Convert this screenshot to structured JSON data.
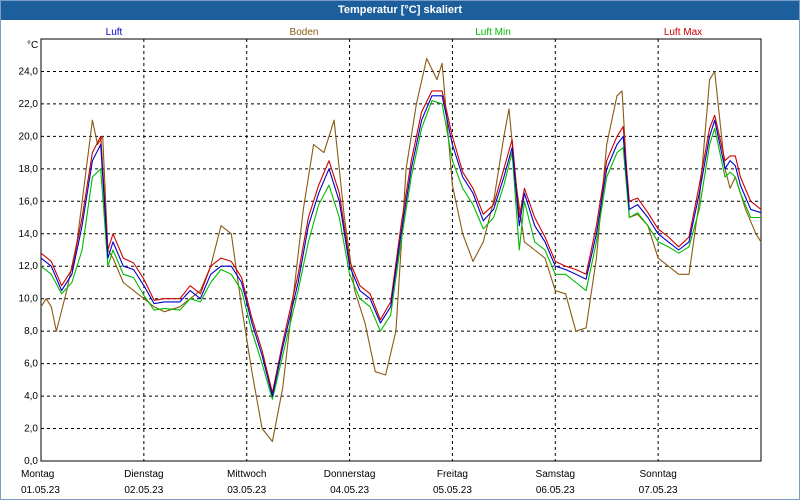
{
  "window": {
    "title": "Temperatur [°C] skaliert"
  },
  "chart_data": {
    "type": "line",
    "title": "Temperatur [°C] skaliert",
    "ylabel": "°C",
    "ylim": [
      0,
      26
    ],
    "yticks": [
      0,
      2,
      4,
      6,
      8,
      10,
      12,
      14,
      16,
      18,
      20,
      22,
      24
    ],
    "ytick_labels": [
      "0,0",
      "2,0",
      "4,0",
      "6,0",
      "8,0",
      "10,0",
      "12,0",
      "14,0",
      "16,0",
      "18,0",
      "20,0",
      "22,0",
      "24,0"
    ],
    "xlim": [
      0,
      7
    ],
    "days": [
      {
        "name": "Montag",
        "date": "01.05.23"
      },
      {
        "name": "Dienstag",
        "date": "02.05.23"
      },
      {
        "name": "Mittwoch",
        "date": "03.05.23"
      },
      {
        "name": "Donnerstag",
        "date": "04.05.23"
      },
      {
        "name": "Freitag",
        "date": "05.05.23"
      },
      {
        "name": "Samstag",
        "date": "06.05.23"
      },
      {
        "name": "Sonntag",
        "date": "07.05.23"
      }
    ],
    "grid": true,
    "series": [
      {
        "name": "Luft",
        "color": "#0000cc",
        "points": [
          [
            0,
            12.5
          ],
          [
            0.1,
            12.0
          ],
          [
            0.2,
            10.5
          ],
          [
            0.3,
            11.5
          ],
          [
            0.4,
            14.5
          ],
          [
            0.5,
            18.5
          ],
          [
            0.58,
            19.5
          ],
          [
            0.65,
            12.5
          ],
          [
            0.7,
            13.5
          ],
          [
            0.8,
            12.0
          ],
          [
            0.9,
            11.8
          ],
          [
            1.0,
            10.8
          ],
          [
            1.1,
            9.7
          ],
          [
            1.2,
            9.8
          ],
          [
            1.35,
            9.8
          ],
          [
            1.45,
            10.5
          ],
          [
            1.55,
            10.0
          ],
          [
            1.65,
            11.5
          ],
          [
            1.75,
            12.0
          ],
          [
            1.85,
            12.0
          ],
          [
            1.95,
            11.0
          ],
          [
            2.05,
            8.5
          ],
          [
            2.15,
            6.5
          ],
          [
            2.25,
            4.0
          ],
          [
            2.35,
            7.0
          ],
          [
            2.5,
            11.0
          ],
          [
            2.6,
            14.5
          ],
          [
            2.7,
            16.5
          ],
          [
            2.8,
            18.0
          ],
          [
            2.9,
            16.0
          ],
          [
            3.0,
            12.0
          ],
          [
            3.1,
            10.5
          ],
          [
            3.2,
            10.0
          ],
          [
            3.3,
            8.5
          ],
          [
            3.4,
            9.5
          ],
          [
            3.5,
            14.0
          ],
          [
            3.6,
            18.0
          ],
          [
            3.7,
            21.0
          ],
          [
            3.8,
            22.5
          ],
          [
            3.9,
            22.5
          ],
          [
            4.0,
            19.5
          ],
          [
            4.1,
            17.5
          ],
          [
            4.2,
            16.5
          ],
          [
            4.3,
            14.8
          ],
          [
            4.4,
            15.5
          ],
          [
            4.5,
            17.5
          ],
          [
            4.58,
            19.3
          ],
          [
            4.65,
            14.5
          ],
          [
            4.7,
            16.5
          ],
          [
            4.8,
            14.5
          ],
          [
            4.9,
            13.5
          ],
          [
            5.0,
            12.0
          ],
          [
            5.1,
            11.8
          ],
          [
            5.2,
            11.5
          ],
          [
            5.3,
            11.2
          ],
          [
            5.4,
            14.0
          ],
          [
            5.5,
            18.0
          ],
          [
            5.6,
            19.5
          ],
          [
            5.66,
            20.0
          ],
          [
            5.72,
            15.5
          ],
          [
            5.8,
            15.8
          ],
          [
            5.9,
            15.0
          ],
          [
            6.0,
            14.0
          ],
          [
            6.1,
            13.5
          ],
          [
            6.2,
            13.0
          ],
          [
            6.3,
            13.5
          ],
          [
            6.4,
            16.5
          ],
          [
            6.5,
            20.0
          ],
          [
            6.55,
            21.0
          ],
          [
            6.65,
            18.0
          ],
          [
            6.7,
            18.5
          ],
          [
            6.75,
            18.2
          ],
          [
            6.8,
            17.0
          ],
          [
            6.9,
            15.5
          ],
          [
            7.0,
            15.3
          ]
        ]
      },
      {
        "name": "Boden",
        "color": "#8b5a12",
        "points": [
          [
            0,
            9.5
          ],
          [
            0.05,
            10.0
          ],
          [
            0.1,
            9.5
          ],
          [
            0.15,
            8.0
          ],
          [
            0.25,
            10.5
          ],
          [
            0.35,
            13.5
          ],
          [
            0.45,
            18.5
          ],
          [
            0.5,
            21.0
          ],
          [
            0.55,
            19.5
          ],
          [
            0.6,
            20.0
          ],
          [
            0.65,
            13.0
          ],
          [
            0.7,
            12.5
          ],
          [
            0.8,
            11.0
          ],
          [
            0.9,
            10.5
          ],
          [
            1.0,
            10.0
          ],
          [
            1.1,
            9.5
          ],
          [
            1.2,
            9.2
          ],
          [
            1.35,
            9.5
          ],
          [
            1.45,
            10.0
          ],
          [
            1.55,
            10.5
          ],
          [
            1.65,
            12.0
          ],
          [
            1.75,
            14.5
          ],
          [
            1.85,
            14.0
          ],
          [
            1.95,
            9.5
          ],
          [
            2.05,
            5.5
          ],
          [
            2.15,
            2.0
          ],
          [
            2.25,
            1.2
          ],
          [
            2.35,
            4.5
          ],
          [
            2.45,
            10.0
          ],
          [
            2.55,
            15.5
          ],
          [
            2.65,
            19.5
          ],
          [
            2.75,
            19.0
          ],
          [
            2.85,
            21.0
          ],
          [
            2.95,
            15.0
          ],
          [
            3.05,
            10.5
          ],
          [
            3.15,
            8.5
          ],
          [
            3.25,
            5.5
          ],
          [
            3.35,
            5.3
          ],
          [
            3.45,
            8.0
          ],
          [
            3.55,
            18.0
          ],
          [
            3.65,
            22.0
          ],
          [
            3.75,
            24.8
          ],
          [
            3.85,
            23.5
          ],
          [
            3.9,
            24.5
          ],
          [
            4.0,
            17.0
          ],
          [
            4.1,
            14.0
          ],
          [
            4.2,
            12.3
          ],
          [
            4.3,
            13.5
          ],
          [
            4.4,
            16.0
          ],
          [
            4.5,
            20.0
          ],
          [
            4.55,
            21.7
          ],
          [
            4.62,
            17.0
          ],
          [
            4.7,
            13.5
          ],
          [
            4.8,
            13.0
          ],
          [
            4.9,
            12.5
          ],
          [
            5.0,
            10.5
          ],
          [
            5.1,
            10.3
          ],
          [
            5.2,
            8.0
          ],
          [
            5.3,
            8.2
          ],
          [
            5.4,
            12.5
          ],
          [
            5.5,
            19.5
          ],
          [
            5.6,
            22.5
          ],
          [
            5.65,
            22.8
          ],
          [
            5.72,
            15.0
          ],
          [
            5.8,
            15.2
          ],
          [
            5.9,
            14.5
          ],
          [
            6.0,
            12.5
          ],
          [
            6.1,
            12.0
          ],
          [
            6.2,
            11.5
          ],
          [
            6.3,
            11.5
          ],
          [
            6.4,
            16.0
          ],
          [
            6.5,
            23.5
          ],
          [
            6.55,
            24.0
          ],
          [
            6.65,
            18.0
          ],
          [
            6.7,
            16.8
          ],
          [
            6.75,
            17.5
          ],
          [
            6.85,
            15.5
          ],
          [
            6.95,
            14.0
          ],
          [
            7.0,
            13.5
          ]
        ]
      },
      {
        "name": "Luft Min",
        "color": "#00bb00",
        "points": [
          [
            0,
            12.0
          ],
          [
            0.1,
            11.5
          ],
          [
            0.2,
            10.3
          ],
          [
            0.3,
            11.0
          ],
          [
            0.4,
            13.0
          ],
          [
            0.5,
            17.5
          ],
          [
            0.58,
            18.0
          ],
          [
            0.65,
            12.0
          ],
          [
            0.7,
            13.0
          ],
          [
            0.8,
            11.5
          ],
          [
            0.9,
            11.3
          ],
          [
            1.0,
            10.2
          ],
          [
            1.1,
            9.3
          ],
          [
            1.2,
            9.4
          ],
          [
            1.35,
            9.3
          ],
          [
            1.45,
            10.0
          ],
          [
            1.55,
            9.8
          ],
          [
            1.65,
            11.0
          ],
          [
            1.75,
            11.8
          ],
          [
            1.85,
            11.5
          ],
          [
            1.95,
            10.5
          ],
          [
            2.05,
            8.0
          ],
          [
            2.15,
            6.0
          ],
          [
            2.25,
            3.8
          ],
          [
            2.35,
            6.5
          ],
          [
            2.5,
            10.5
          ],
          [
            2.6,
            13.5
          ],
          [
            2.7,
            15.8
          ],
          [
            2.8,
            17.0
          ],
          [
            2.9,
            15.0
          ],
          [
            3.0,
            11.5
          ],
          [
            3.1,
            10.0
          ],
          [
            3.2,
            9.5
          ],
          [
            3.3,
            8.0
          ],
          [
            3.4,
            9.0
          ],
          [
            3.5,
            13.5
          ],
          [
            3.6,
            17.5
          ],
          [
            3.7,
            20.5
          ],
          [
            3.8,
            22.2
          ],
          [
            3.9,
            22.0
          ],
          [
            4.0,
            18.5
          ],
          [
            4.1,
            16.8
          ],
          [
            4.2,
            15.8
          ],
          [
            4.3,
            14.3
          ],
          [
            4.4,
            15.0
          ],
          [
            4.5,
            17.0
          ],
          [
            4.58,
            19.0
          ],
          [
            4.65,
            13.0
          ],
          [
            4.7,
            16.0
          ],
          [
            4.8,
            13.5
          ],
          [
            4.9,
            13.0
          ],
          [
            5.0,
            11.5
          ],
          [
            5.1,
            11.5
          ],
          [
            5.2,
            11.0
          ],
          [
            5.3,
            10.5
          ],
          [
            5.4,
            13.5
          ],
          [
            5.5,
            17.5
          ],
          [
            5.6,
            19.0
          ],
          [
            5.66,
            19.3
          ],
          [
            5.72,
            15.0
          ],
          [
            5.8,
            15.3
          ],
          [
            5.9,
            14.5
          ],
          [
            6.0,
            13.5
          ],
          [
            6.1,
            13.2
          ],
          [
            6.2,
            12.8
          ],
          [
            6.3,
            13.2
          ],
          [
            6.4,
            15.5
          ],
          [
            6.5,
            19.5
          ],
          [
            6.55,
            20.5
          ],
          [
            6.65,
            17.5
          ],
          [
            6.7,
            17.8
          ],
          [
            6.75,
            17.5
          ],
          [
            6.8,
            16.5
          ],
          [
            6.9,
            15.0
          ],
          [
            7.0,
            15.0
          ]
        ]
      },
      {
        "name": "Luft Max",
        "color": "#cc0000",
        "points": [
          [
            0,
            12.8
          ],
          [
            0.1,
            12.3
          ],
          [
            0.2,
            10.8
          ],
          [
            0.3,
            11.8
          ],
          [
            0.4,
            15.0
          ],
          [
            0.5,
            19.0
          ],
          [
            0.58,
            20.0
          ],
          [
            0.65,
            13.0
          ],
          [
            0.7,
            14.0
          ],
          [
            0.8,
            12.5
          ],
          [
            0.9,
            12.2
          ],
          [
            1.0,
            11.2
          ],
          [
            1.1,
            9.9
          ],
          [
            1.2,
            10.0
          ],
          [
            1.35,
            10.0
          ],
          [
            1.45,
            10.8
          ],
          [
            1.55,
            10.3
          ],
          [
            1.65,
            12.0
          ],
          [
            1.75,
            12.5
          ],
          [
            1.85,
            12.3
          ],
          [
            1.95,
            11.3
          ],
          [
            2.05,
            8.8
          ],
          [
            2.15,
            6.8
          ],
          [
            2.25,
            4.2
          ],
          [
            2.35,
            7.3
          ],
          [
            2.5,
            11.5
          ],
          [
            2.6,
            15.0
          ],
          [
            2.7,
            17.0
          ],
          [
            2.8,
            18.5
          ],
          [
            2.9,
            16.5
          ],
          [
            3.0,
            12.3
          ],
          [
            3.1,
            10.8
          ],
          [
            3.2,
            10.3
          ],
          [
            3.3,
            8.7
          ],
          [
            3.4,
            9.8
          ],
          [
            3.5,
            14.5
          ],
          [
            3.6,
            18.5
          ],
          [
            3.7,
            21.5
          ],
          [
            3.8,
            22.8
          ],
          [
            3.9,
            22.8
          ],
          [
            4.0,
            20.0
          ],
          [
            4.1,
            17.8
          ],
          [
            4.2,
            16.8
          ],
          [
            4.3,
            15.2
          ],
          [
            4.4,
            15.8
          ],
          [
            4.5,
            18.0
          ],
          [
            4.58,
            19.8
          ],
          [
            4.65,
            15.0
          ],
          [
            4.7,
            16.8
          ],
          [
            4.8,
            15.0
          ],
          [
            4.9,
            13.8
          ],
          [
            5.0,
            12.3
          ],
          [
            5.1,
            12.0
          ],
          [
            5.2,
            11.8
          ],
          [
            5.3,
            11.5
          ],
          [
            5.4,
            14.5
          ],
          [
            5.5,
            18.5
          ],
          [
            5.6,
            20.0
          ],
          [
            5.66,
            20.6
          ],
          [
            5.72,
            16.0
          ],
          [
            5.8,
            16.2
          ],
          [
            5.9,
            15.3
          ],
          [
            6.0,
            14.3
          ],
          [
            6.1,
            13.8
          ],
          [
            6.2,
            13.2
          ],
          [
            6.3,
            13.8
          ],
          [
            6.4,
            17.0
          ],
          [
            6.5,
            20.5
          ],
          [
            6.55,
            21.3
          ],
          [
            6.65,
            18.5
          ],
          [
            6.7,
            18.8
          ],
          [
            6.75,
            18.8
          ],
          [
            6.8,
            17.5
          ],
          [
            6.9,
            16.0
          ],
          [
            7.0,
            15.5
          ]
        ]
      }
    ]
  }
}
